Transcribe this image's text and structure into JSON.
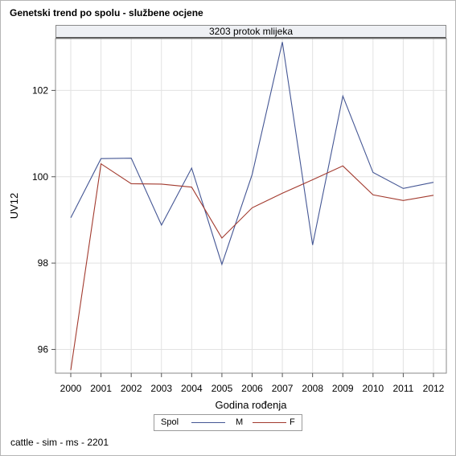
{
  "title": "Genetski trend po spolu - službene ocjene",
  "footnote": "cattle - sim - ms - 2201",
  "colors": {
    "M": "#445694",
    "F": "#a23a2e",
    "grid": "#e2e2e2",
    "panel": "#eef0f4"
  },
  "chart_data": {
    "type": "line",
    "panel_label": "3203 protok mlijeka",
    "xlabel": "Godina rođenja",
    "ylabel": "UV12",
    "categories": [
      "2000",
      "2001",
      "2002",
      "2003",
      "2004",
      "2005",
      "2006",
      "2007",
      "2008",
      "2009",
      "2010",
      "2011",
      "2012"
    ],
    "y_ticks": [
      96,
      98,
      100,
      102
    ],
    "ylim": [
      95.45,
      103.2
    ],
    "grid": true,
    "legend_title": "Spol",
    "legend_position": "bottom",
    "series": [
      {
        "name": "M",
        "values": [
          99.05,
          100.42,
          100.43,
          98.88,
          100.2,
          97.97,
          100.05,
          103.12,
          98.42,
          101.87,
          100.1,
          99.73,
          99.87
        ]
      },
      {
        "name": "F",
        "values": [
          95.52,
          100.3,
          99.84,
          99.83,
          99.76,
          98.58,
          99.28,
          99.62,
          99.93,
          100.25,
          99.58,
          99.45,
          99.57
        ]
      }
    ]
  }
}
